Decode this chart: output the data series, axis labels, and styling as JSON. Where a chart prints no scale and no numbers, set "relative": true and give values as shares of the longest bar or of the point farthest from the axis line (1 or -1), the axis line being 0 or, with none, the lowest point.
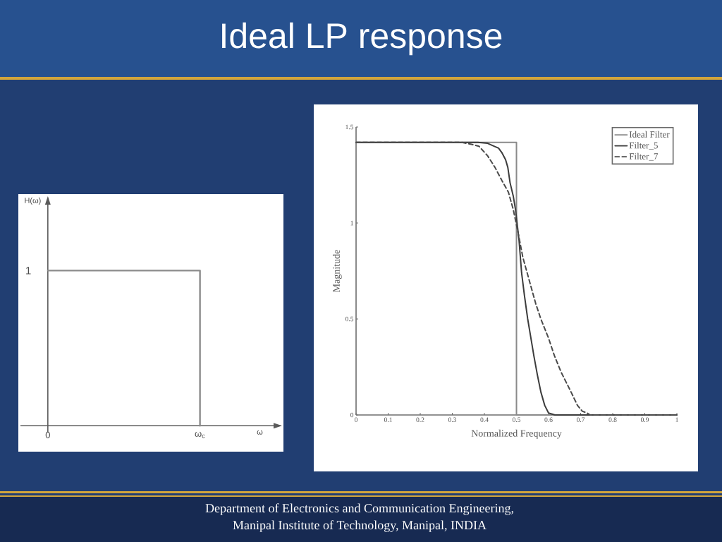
{
  "chart_data": [
    {
      "type": "step",
      "title": "Ideal LP response",
      "relative": true,
      "xlabel": "ω",
      "ylabel": "H(ω)",
      "categories": [
        "0",
        "ω$_{c}$"
      ],
      "values": [
        1,
        0
      ],
      "color": "#8c8c8c",
      "annotations": [
        "1"
      ]
    },
    {
      "type": "line",
      "xlabel": "Normalized Frequency",
      "ylabel": "Magnitude",
      "xlim": [
        0,
        1
      ],
      "ylim": [
        0,
        1.5
      ],
      "xticks": [
        0,
        0.1,
        0.2,
        0.3,
        0.4,
        0.5,
        0.6,
        0.7,
        0.8,
        0.9,
        1
      ],
      "yticks": [
        0,
        0.5,
        1,
        1.5
      ],
      "legend": "top right",
      "series": [
        {
          "name": "Ideal Filter",
          "color": "#8a8a8a",
          "line_style": "solid",
          "x": [
            0,
            0.5,
            0.5,
            1
          ],
          "values": [
            1.42,
            1.42,
            0,
            0
          ]
        },
        {
          "name": "Filter_5",
          "color": "#3c3c3c",
          "line_style": "solid",
          "x": [
            0,
            0.3,
            0.38,
            0.41,
            0.43,
            0.444,
            0.455,
            0.466,
            0.473,
            0.48,
            0.49,
            0.497,
            0.508,
            0.516,
            0.525,
            0.535,
            0.545,
            0.554,
            0.565,
            0.576,
            0.588,
            0.6,
            0.62,
            0.7,
            0.8,
            0.9,
            1
          ],
          "values": [
            1.42,
            1.42,
            1.42,
            1.415,
            1.4,
            1.39,
            1.365,
            1.33,
            1.29,
            1.21,
            1.14,
            1.07,
            0.91,
            0.74,
            0.62,
            0.5,
            0.4,
            0.31,
            0.21,
            0.12,
            0.05,
            0.01,
            0,
            0,
            0,
            0,
            0
          ]
        },
        {
          "name": "Filter_7",
          "color": "#4a4a4a",
          "line_style": "dashed",
          "x": [
            0,
            0.3,
            0.33,
            0.36,
            0.383,
            0.41,
            0.433,
            0.455,
            0.475,
            0.49,
            0.505,
            0.52,
            0.545,
            0.56,
            0.576,
            0.6,
            0.618,
            0.64,
            0.67,
            0.69,
            0.705,
            0.72,
            0.73,
            0.8,
            0.9,
            1
          ],
          "values": [
            1.42,
            1.42,
            1.42,
            1.41,
            1.4,
            1.35,
            1.29,
            1.22,
            1.16,
            1.07,
            0.95,
            0.82,
            0.67,
            0.58,
            0.5,
            0.4,
            0.31,
            0.22,
            0.12,
            0.05,
            0.02,
            0.01,
            0,
            0,
            0,
            0
          ]
        }
      ],
      "annotations": [
        "Department of Electronics and Communication Engineering,",
        "Manipal Institute of Technology, Manipal, INDIA"
      ]
    }
  ]
}
